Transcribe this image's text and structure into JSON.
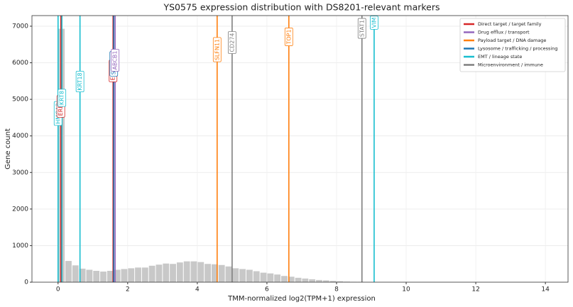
{
  "chart_data": {
    "type": "histogram",
    "title": "YS0575 expression distribution with DS8201-relevant markers",
    "x_label": "TMM-normalized log2(TPM+1) expression",
    "y_label": "Gene count",
    "bins": [
      0,
      0.2,
      0.4,
      0.6,
      0.8,
      1.0,
      1.2,
      1.4,
      1.6,
      1.8,
      2.0,
      2.2,
      2.4,
      2.6,
      2.8,
      3.0,
      3.2,
      3.4,
      3.6,
      3.8,
      4.0,
      4.2,
      4.4,
      4.6,
      4.8,
      5.0,
      5.2,
      5.4,
      5.6,
      5.8,
      6.0,
      6.2,
      6.4,
      6.6,
      6.8,
      7.0,
      7.2,
      7.4,
      7.6,
      7.8,
      8.0,
      8.2,
      8.4,
      8.6,
      8.8,
      9.0,
      9.2,
      9.4,
      9.6
    ],
    "counts": [
      6930,
      580,
      460,
      370,
      340,
      310,
      290,
      310,
      340,
      360,
      380,
      400,
      400,
      450,
      480,
      510,
      500,
      540,
      570,
      570,
      550,
      500,
      490,
      470,
      430,
      380,
      360,
      340,
      300,
      260,
      240,
      210,
      170,
      150,
      120,
      100,
      80,
      60,
      50,
      35,
      25,
      15,
      10,
      8,
      5,
      3,
      2,
      1
    ],
    "color": "#c8c8c8",
    "xlim": [
      -0.75,
      14.65
    ],
    "ylim": [
      0,
      7290
    ],
    "xticks": [
      0,
      2,
      4,
      6,
      8,
      10,
      12,
      14
    ],
    "yticks": [
      0,
      1000,
      2000,
      3000,
      4000,
      5000,
      6000,
      7000
    ],
    "grid": true,
    "legend_loc": "upper right",
    "legend": [
      {
        "name": "Direct target / target family",
        "color": "#d62728"
      },
      {
        "name": "Drug efflux / transport",
        "color": "#9467bd"
      },
      {
        "name": "Payload target / DNA damage",
        "color": "#ff7f0e"
      },
      {
        "name": "Lysosome / trafficking / processing",
        "color": "#1f77b4"
      },
      {
        "name": "EMT / lineage state",
        "color": "#17becf"
      },
      {
        "name": "Microenvironment / immune",
        "color": "#7f7f7f"
      }
    ],
    "markers": [
      {
        "label": "HMGA2",
        "x": 0.0,
        "color": "#17becf"
      },
      {
        "label": "ERBB2",
        "x": 0.08,
        "color": "#d62728"
      },
      {
        "label": "KRT8",
        "x": 0.11,
        "color": "#17becf"
      },
      {
        "label": "KRT18",
        "x": 0.63,
        "color": "#17becf"
      },
      {
        "label": "ERBB3",
        "x": 1.58,
        "color": "#d62728"
      },
      {
        "label": "SLC7A5",
        "x": 1.6,
        "color": "#1f77b4"
      },
      {
        "label": "ABCB1",
        "x": 1.64,
        "color": "#9467bd"
      },
      {
        "label": "SLFN11",
        "x": 4.57,
        "color": "#ff7f0e"
      },
      {
        "label": "CD274",
        "x": 5.0,
        "color": "#7f7f7f"
      },
      {
        "label": "TOP1",
        "x": 6.63,
        "color": "#ff7f0e"
      },
      {
        "label": "STAT1",
        "x": 8.73,
        "color": "#7f7f7f"
      },
      {
        "label": "VIM",
        "x": 9.08,
        "color": "#17becf"
      }
    ]
  }
}
